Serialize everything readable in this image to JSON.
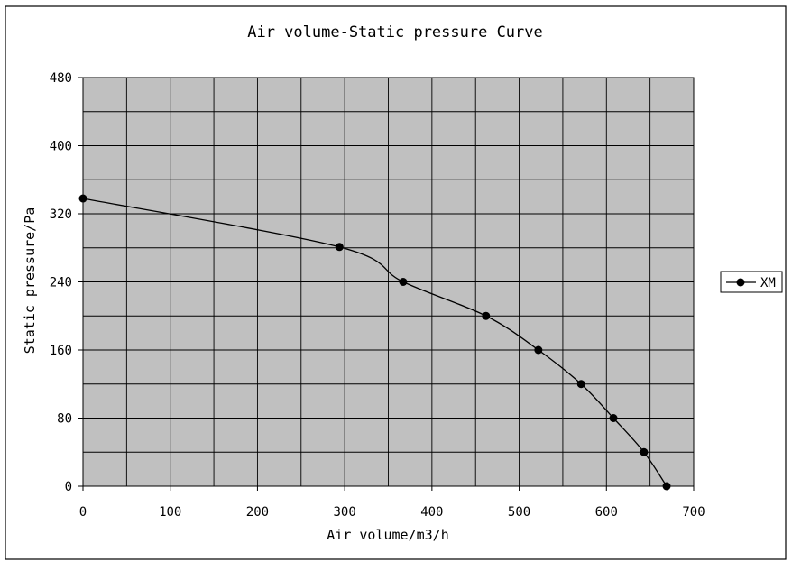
{
  "chart_data": {
    "type": "line",
    "title": "Air volume-Static pressure Curve",
    "xlabel": "Air volume/m3/h",
    "ylabel": "Static pressure/Pa",
    "xlim": [
      0,
      700
    ],
    "ylim": [
      0,
      480
    ],
    "xticks": [
      "0",
      "100",
      "200",
      "300",
      "400",
      "500",
      "600",
      "700"
    ],
    "yticks": [
      "0",
      "80",
      "160",
      "240",
      "320",
      "400",
      "480"
    ],
    "x_grid_step": 50,
    "y_grid_step": 40,
    "grid": true,
    "plot_background": "#c0c0c0",
    "legend_position": "right",
    "series": [
      {
        "name": "XM",
        "color": "#000000",
        "marker": "circle",
        "points": [
          [
            0,
            338
          ],
          [
            294,
            281
          ],
          [
            367,
            240
          ],
          [
            462,
            200
          ],
          [
            522,
            160
          ],
          [
            571,
            120
          ],
          [
            608,
            80
          ],
          [
            643,
            40
          ],
          [
            669,
            0
          ]
        ]
      }
    ]
  }
}
